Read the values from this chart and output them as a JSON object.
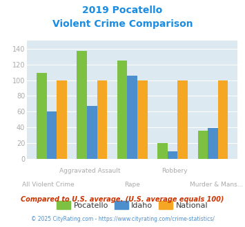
{
  "title_line1": "2019 Pocatello",
  "title_line2": "Violent Crime Comparison",
  "categories": [
    "All Violent Crime",
    "Aggravated Assault",
    "Rape",
    "Robbery",
    "Murder & Mans..."
  ],
  "pocatello": [
    109,
    137,
    125,
    20,
    36
  ],
  "idaho": [
    60,
    67,
    106,
    10,
    39
  ],
  "national": [
    100,
    100,
    100,
    100,
    100
  ],
  "color_pocatello": "#7dc142",
  "color_idaho": "#4d8fcc",
  "color_national": "#f5a623",
  "ylim": [
    0,
    150
  ],
  "yticks": [
    0,
    20,
    40,
    60,
    80,
    100,
    120,
    140
  ],
  "legend_labels": [
    "Pocatello",
    "Idaho",
    "National"
  ],
  "footnote1": "Compared to U.S. average. (U.S. average equals 100)",
  "footnote2": "© 2025 CityRating.com - https://www.cityrating.com/crime-statistics/",
  "title_color": "#1b8ce0",
  "footnote1_color": "#cc3300",
  "footnote2_color": "#4d8fcc",
  "bg_color": "#dce9f0",
  "bar_width": 0.25,
  "grid_color": "#ffffff",
  "tick_color": "#aaaaaa",
  "label_top": [
    "",
    "Aggravated Assault",
    "",
    "Robbery",
    ""
  ],
  "label_bottom": [
    "All Violent Crime",
    "",
    "Rape",
    "",
    "Murder & Mans..."
  ]
}
